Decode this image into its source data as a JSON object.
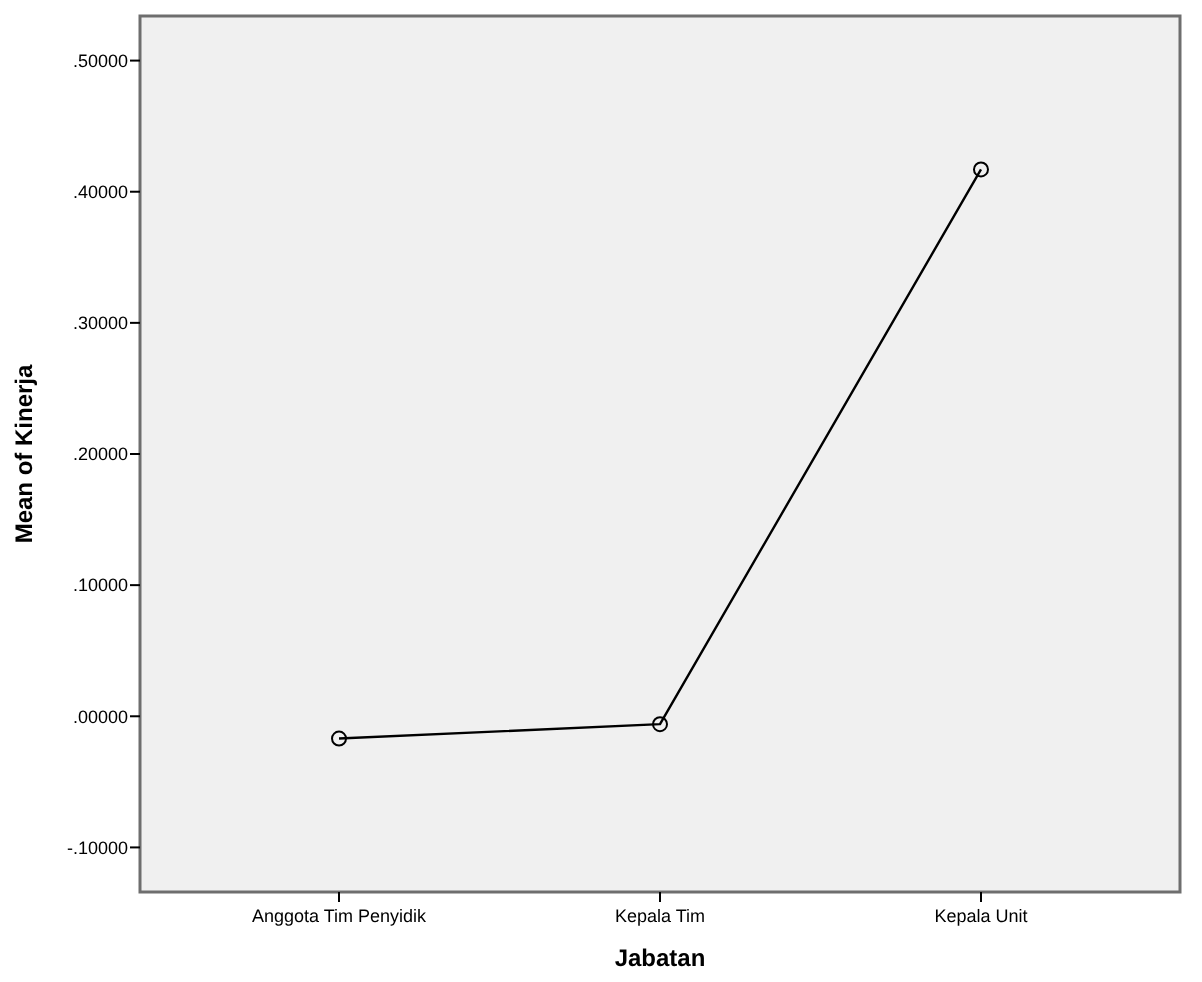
{
  "chart_data": {
    "type": "line",
    "xlabel": "Jabatan",
    "ylabel": "Mean of Kinerja",
    "categories": [
      "Anggota Tim Penyidik",
      "Kepala Tim",
      "Kepala Unit"
    ],
    "series": [
      {
        "color": "#000000",
        "values": [
          -0.017,
          -0.006,
          0.417
        ]
      }
    ],
    "ylim": [
      -0.134,
      0.534
    ],
    "yticks": [
      {
        "value": -0.1,
        "label": "-.10000"
      },
      {
        "value": 0,
        "label": ".00000"
      },
      {
        "value": 0.1,
        "label": ".10000"
      },
      {
        "value": 0.2,
        "label": ".20000"
      },
      {
        "value": 0.3,
        "label": ".30000"
      },
      {
        "value": 0.4,
        "label": ".40000"
      },
      {
        "value": 0.5,
        "label": ".50000"
      }
    ],
    "marker": "circle",
    "line_style": "solid",
    "grid": false
  }
}
